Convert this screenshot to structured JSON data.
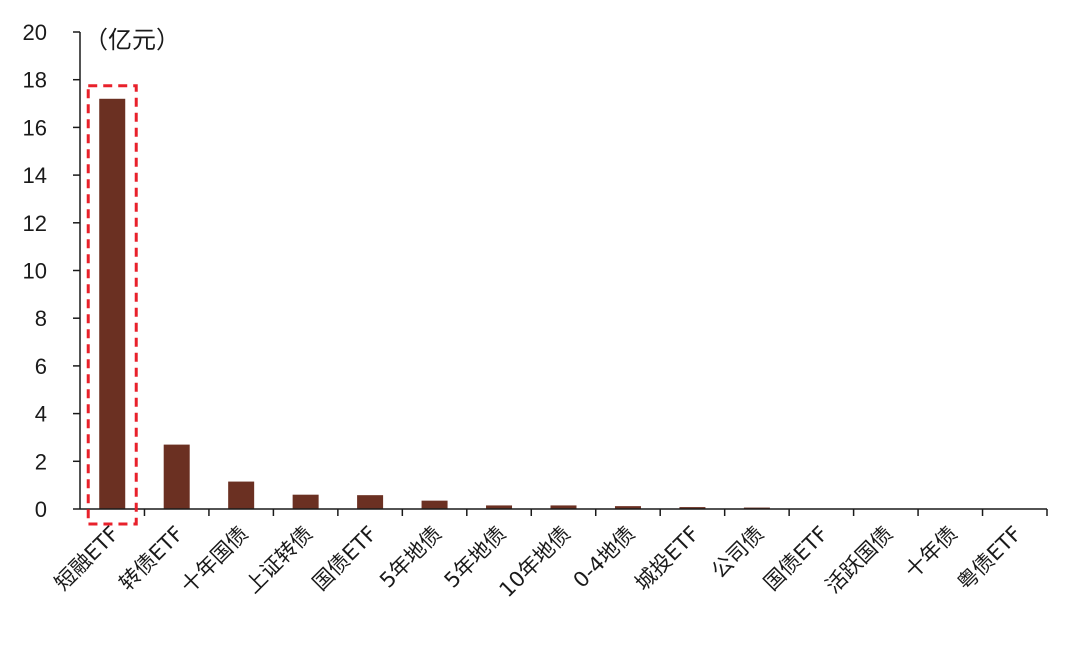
{
  "chart_data": {
    "type": "bar",
    "unit_label": "（亿元）",
    "categories": [
      "短融ETF",
      "转债ETF",
      "十年国债",
      "上证转债",
      "国债ETF",
      "5年地债",
      "5年地债",
      "10年地债",
      "0-4地债",
      "城投ETF",
      "公司债",
      "国债ETF",
      "活跃国债",
      "十年债",
      "粤债ETF"
    ],
    "values": [
      17.2,
      2.7,
      1.15,
      0.6,
      0.58,
      0.35,
      0.15,
      0.15,
      0.12,
      0.08,
      0.06,
      0.02,
      0.01,
      0.01,
      0.01
    ],
    "ylim": [
      0,
      20
    ],
    "yticks": [
      0,
      2,
      4,
      6,
      8,
      10,
      12,
      14,
      16,
      18,
      20
    ],
    "ytick_labels": [
      "0",
      "2",
      "4",
      "6",
      "8",
      "10",
      "12",
      "14",
      "16",
      "18",
      "20"
    ],
    "highlight_index": 0,
    "grid": false,
    "legend": "none",
    "bar_color": "#6b3022",
    "highlight_color": "#e8212b",
    "axis_color": "#1a1a1a"
  }
}
